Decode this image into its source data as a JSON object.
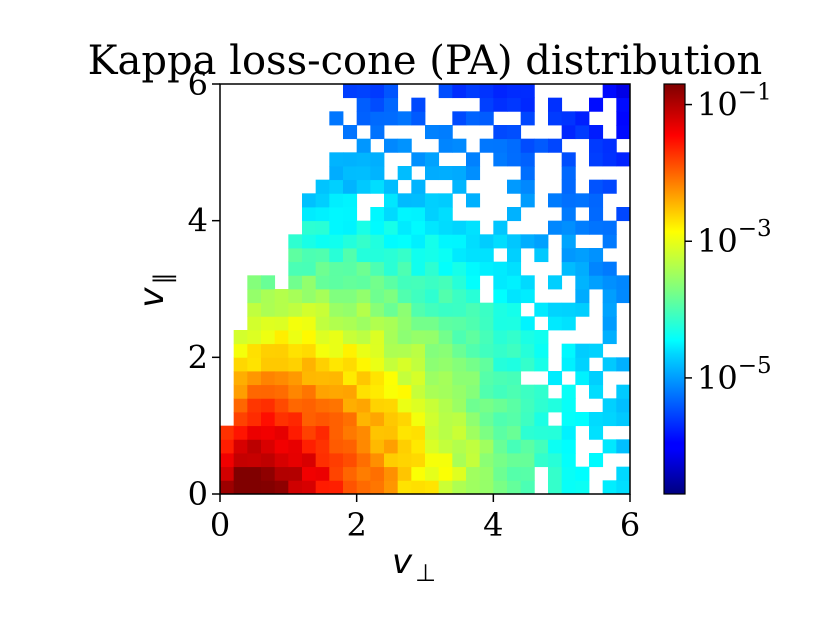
{
  "chart_data": {
    "type": "heatmap",
    "title": "Kappa loss-cone (PA) distribution",
    "xlabel": "v⊥",
    "ylabel": "v∥",
    "x_axis": {
      "label_main": "v",
      "label_sub": "⊥",
      "range": [
        0,
        6
      ],
      "ticks": [
        0,
        2,
        4,
        6
      ],
      "tick_labels": [
        "0",
        "2",
        "4",
        "6"
      ]
    },
    "y_axis": {
      "label_main": "v",
      "label_sub": "∥",
      "range": [
        0,
        6
      ],
      "ticks": [
        0,
        2,
        4,
        6
      ],
      "tick_labels": [
        "0",
        "2",
        "4",
        "6"
      ]
    },
    "bins": {
      "nx": 30,
      "ny": 30,
      "bin_width": 0.2
    },
    "cell_value_model": "log10 density ≈ 1.65*ln(1 + (v⊥² + v∥²)/(2*1.35)) with sin²(pitch angle) loss-cone weighting; bins beyond |v| ≈ 5.2 sparse/empty",
    "colorbar": {
      "scale": "log",
      "colormap": "jet",
      "range": [
        2e-07,
        0.2
      ],
      "ticks": [
        1e-05,
        0.001,
        0.1
      ],
      "tick_labels": [
        {
          "base": "10",
          "exp": "−5"
        },
        {
          "base": "10",
          "exp": "−3"
        },
        {
          "base": "10",
          "exp": "−1"
        }
      ]
    },
    "grid": false
  }
}
